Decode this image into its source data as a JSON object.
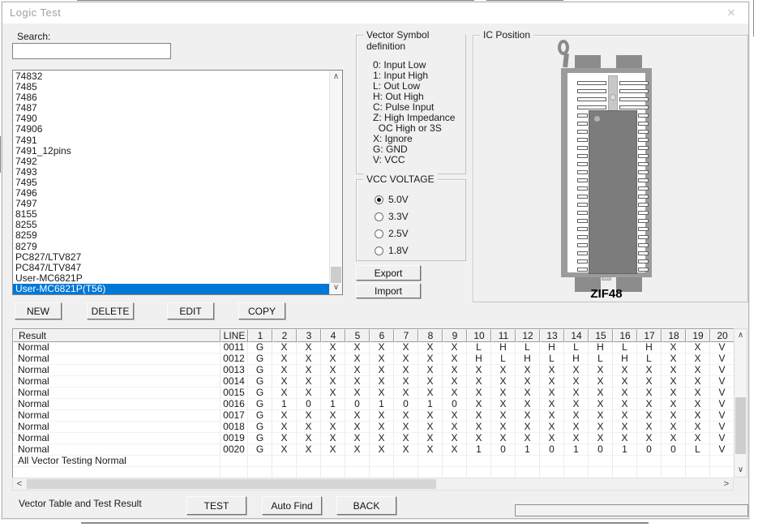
{
  "window": {
    "title": "Logic Test",
    "close_glyph": "×"
  },
  "icons": {
    "scroll_up_glyph": "∧",
    "scroll_down_glyph": "∨",
    "scroll_left_glyph": "<",
    "scroll_right_glyph": ">"
  },
  "search": {
    "label": "Search:",
    "value": "",
    "placeholder": ""
  },
  "chip_list": {
    "items": [
      "74832",
      "7485",
      "7486",
      "7487",
      "7490",
      "74906",
      "7491",
      "7491_12pins",
      "7492",
      "7493",
      "7495",
      "7496",
      "7497",
      "8155",
      "8255",
      "8259",
      "8279",
      "PC827/LTV827",
      "PC847/LTV847",
      "User-MC6821P",
      "User-MC6821P(T56)"
    ],
    "selected": "User-MC6821P(T56)"
  },
  "list_buttons": {
    "new": "NEW",
    "delete": "DELETE",
    "edit": "EDIT",
    "copy": "COPY"
  },
  "vector_symbols": {
    "title": "Vector Symbol definition",
    "lines": [
      "0: Input Low",
      "1: Input High",
      "L: Out Low",
      "H: Out High",
      "C: Pulse Input",
      "Z: High Impedance",
      "  OC High or 3S",
      "X: Ignore",
      "G: GND",
      "V: VCC"
    ]
  },
  "vcc_voltage": {
    "title": "VCC VOLTAGE",
    "options": [
      {
        "label": "5.0V",
        "selected": true
      },
      {
        "label": "3.3V",
        "selected": false
      },
      {
        "label": "2.5V",
        "selected": false
      },
      {
        "label": "1.8V",
        "selected": false
      }
    ]
  },
  "io_buttons": {
    "export": "Export",
    "import": "Import"
  },
  "ic_position": {
    "title": "IC Position",
    "socket_label": "ZIF48"
  },
  "result_table": {
    "columns": [
      "Result",
      "LINE",
      "1",
      "2",
      "3",
      "4",
      "5",
      "6",
      "7",
      "8",
      "9",
      "10",
      "11",
      "12",
      "13",
      "14",
      "15",
      "16",
      "17",
      "18",
      "19",
      "20"
    ],
    "rows": [
      {
        "result": "Normal",
        "line": "0011",
        "values": [
          "G",
          "X",
          "X",
          "X",
          "X",
          "X",
          "X",
          "X",
          "X",
          "L",
          "H",
          "L",
          "H",
          "L",
          "H",
          "L",
          "H",
          "X",
          "X",
          "V"
        ]
      },
      {
        "result": "Normal",
        "line": "0012",
        "values": [
          "G",
          "X",
          "X",
          "X",
          "X",
          "X",
          "X",
          "X",
          "X",
          "H",
          "L",
          "H",
          "L",
          "H",
          "L",
          "H",
          "L",
          "X",
          "X",
          "V"
        ]
      },
      {
        "result": "Normal",
        "line": "0013",
        "values": [
          "G",
          "X",
          "X",
          "X",
          "X",
          "X",
          "X",
          "X",
          "X",
          "X",
          "X",
          "X",
          "X",
          "X",
          "X",
          "X",
          "X",
          "X",
          "X",
          "V"
        ]
      },
      {
        "result": "Normal",
        "line": "0014",
        "values": [
          "G",
          "X",
          "X",
          "X",
          "X",
          "X",
          "X",
          "X",
          "X",
          "X",
          "X",
          "X",
          "X",
          "X",
          "X",
          "X",
          "X",
          "X",
          "X",
          "V"
        ]
      },
      {
        "result": "Normal",
        "line": "0015",
        "values": [
          "G",
          "X",
          "X",
          "X",
          "X",
          "X",
          "X",
          "X",
          "X",
          "X",
          "X",
          "X",
          "X",
          "X",
          "X",
          "X",
          "X",
          "X",
          "X",
          "V"
        ]
      },
      {
        "result": "Normal",
        "line": "0016",
        "values": [
          "G",
          "1",
          "0",
          "1",
          "0",
          "1",
          "0",
          "1",
          "0",
          "X",
          "X",
          "X",
          "X",
          "X",
          "X",
          "X",
          "X",
          "X",
          "X",
          "V"
        ]
      },
      {
        "result": "Normal",
        "line": "0017",
        "values": [
          "G",
          "X",
          "X",
          "X",
          "X",
          "X",
          "X",
          "X",
          "X",
          "X",
          "X",
          "X",
          "X",
          "X",
          "X",
          "X",
          "X",
          "X",
          "X",
          "V"
        ]
      },
      {
        "result": "Normal",
        "line": "0018",
        "values": [
          "G",
          "X",
          "X",
          "X",
          "X",
          "X",
          "X",
          "X",
          "X",
          "X",
          "X",
          "X",
          "X",
          "X",
          "X",
          "X",
          "X",
          "X",
          "X",
          "V"
        ]
      },
      {
        "result": "Normal",
        "line": "0019",
        "values": [
          "G",
          "X",
          "X",
          "X",
          "X",
          "X",
          "X",
          "X",
          "X",
          "X",
          "X",
          "X",
          "X",
          "X",
          "X",
          "X",
          "X",
          "X",
          "X",
          "V"
        ]
      },
      {
        "result": "Normal",
        "line": "0020",
        "values": [
          "G",
          "X",
          "X",
          "X",
          "X",
          "X",
          "X",
          "X",
          "X",
          "1",
          "0",
          "1",
          "0",
          "1",
          "0",
          "1",
          "0",
          "0",
          "L",
          "V"
        ]
      }
    ],
    "footer": "All Vector Testing Normal"
  },
  "footer": {
    "label": "Vector Table and Test Result",
    "test": "TEST",
    "auto_find": "Auto Find",
    "back": "BACK"
  },
  "colors": {
    "selection": "#0078d7",
    "chip_body": "#7c7c7c",
    "socket_frame": "#9b9b9b",
    "dialog_bg": "#f0f0f0"
  }
}
